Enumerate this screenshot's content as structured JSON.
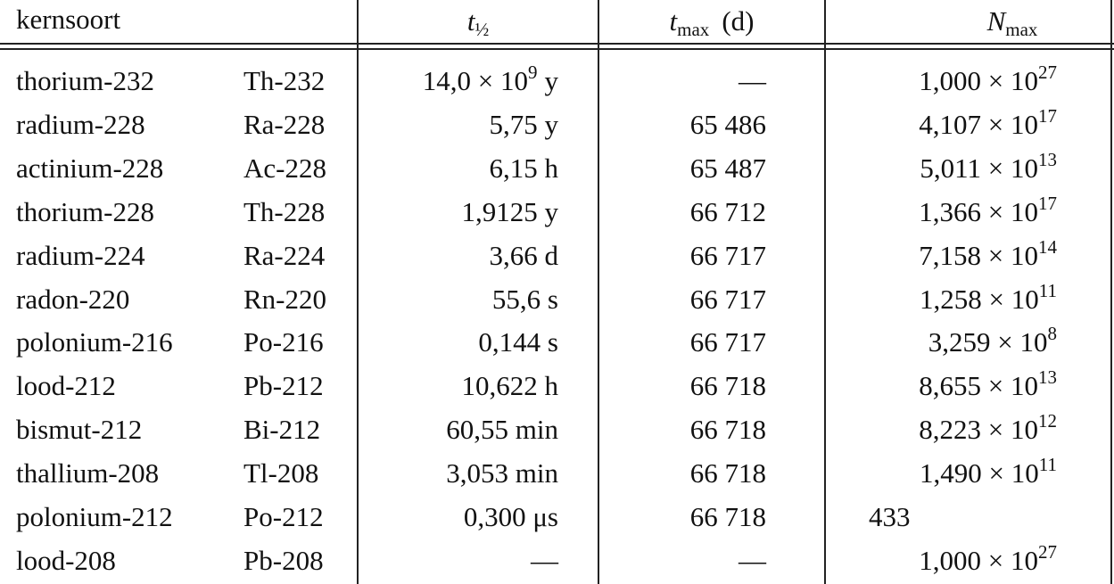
{
  "table": {
    "header": {
      "nuclide": "kernsoort",
      "half_life": {
        "symbol": "t",
        "subscript": "½"
      },
      "t_max": {
        "symbol": "t",
        "subscript": "max",
        "unit": "(d)"
      },
      "n_max": {
        "symbol": "N",
        "subscript": "max"
      }
    },
    "rows": [
      {
        "name": "thorium-232",
        "symbol": "Th-232",
        "half_life": {
          "text": "14,0 × 10",
          "exponent": "9",
          "unit": "y"
        },
        "t_max": "—",
        "n_max": {
          "text": "1,000 × 10",
          "exponent": "27"
        }
      },
      {
        "name": "radium-228",
        "symbol": "Ra-228",
        "half_life": {
          "text": "5,75 y"
        },
        "t_max": "65 486",
        "n_max": {
          "text": "4,107 × 10",
          "exponent": "17"
        }
      },
      {
        "name": "actinium-228",
        "symbol": "Ac-228",
        "half_life": {
          "text": "6,15 h"
        },
        "t_max": "65 487",
        "n_max": {
          "text": "5,011 × 10",
          "exponent": "13"
        }
      },
      {
        "name": "thorium-228",
        "symbol": "Th-228",
        "half_life": {
          "text": "1,9125 y"
        },
        "t_max": "66 712",
        "n_max": {
          "text": "1,366 × 10",
          "exponent": "17"
        }
      },
      {
        "name": "radium-224",
        "symbol": "Ra-224",
        "half_life": {
          "text": "3,66 d"
        },
        "t_max": "66 717",
        "n_max": {
          "text": "7,158 × 10",
          "exponent": "14"
        }
      },
      {
        "name": "radon-220",
        "symbol": "Rn-220",
        "half_life": {
          "text": "55,6 s"
        },
        "t_max": "66 717",
        "n_max": {
          "text": "1,258 × 10",
          "exponent": "11"
        }
      },
      {
        "name": "polonium-216",
        "symbol": "Po-216",
        "half_life": {
          "text": "0,144 s"
        },
        "t_max": "66 717",
        "n_max": {
          "text": "3,259 × 10",
          "exponent": "8"
        }
      },
      {
        "name": "lood-212",
        "symbol": "Pb-212",
        "half_life": {
          "text": "10,622 h"
        },
        "t_max": "66 718",
        "n_max": {
          "text": "8,655 × 10",
          "exponent": "13"
        }
      },
      {
        "name": "bismut-212",
        "symbol": "Bi-212",
        "half_life": {
          "text": "60,55 min"
        },
        "t_max": "66 718",
        "n_max": {
          "text": "8,223 × 10",
          "exponent": "12"
        }
      },
      {
        "name": "thallium-208",
        "symbol": "Tl-208",
        "half_life": {
          "text": "3,053 min"
        },
        "t_max": "66 718",
        "n_max": {
          "text": "1,490 × 10",
          "exponent": "11"
        }
      },
      {
        "name": "polonium-212",
        "symbol": "Po-212",
        "half_life": {
          "text": "0,300 μs"
        },
        "t_max": "66 718",
        "n_max": {
          "text": "433"
        }
      },
      {
        "name": "lood-208",
        "symbol": "Pb-208",
        "half_life": {
          "text": "—"
        },
        "t_max": "—",
        "n_max": {
          "text": "1,000 × 10",
          "exponent": "27"
        }
      }
    ]
  }
}
